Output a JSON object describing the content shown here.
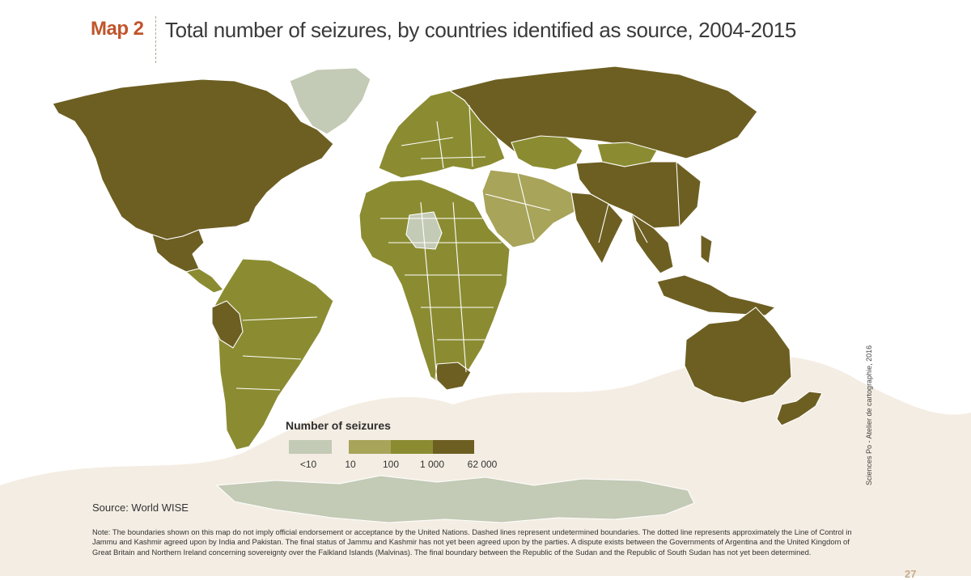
{
  "header": {
    "map_label": "Map 2",
    "title": "Total number of seizures, by countries identified as source, 2004-2015"
  },
  "colors": {
    "class_lt10": "#c3cab5",
    "class_10_100": "#a8a45a",
    "class_100_1000": "#8b8c32",
    "class_1000_62000": "#6d5f22",
    "border": "#ffffff",
    "background_texture": "#f4ede3"
  },
  "legend": {
    "title": "Number of seizures",
    "ticks": [
      "<10",
      "10",
      "100",
      "1 000",
      "62 000"
    ]
  },
  "source": "Source: World WISE",
  "credit": "Sciences Po - Atelier de cartographie, 2016",
  "note": "Note: The boundaries shown on this map do not imply official endorsement or acceptance by the United Nations. Dashed lines represent undetermined boundaries. The dotted line represents approximately the Line of Control in Jammu and Kashmir agreed upon by India and Pakistan. The final status of Jammu and Kashmir has not yet been agreed upon by the parties. A dispute exists between the Governments of Argentina and the United Kingdom of Great Britain and Northern Ireland concerning sovereignty over the Falkland Islands (Malvinas). The final boundary between the Republic of the Sudan and the Republic of South Sudan has not yet been determined.",
  "page_number": "27",
  "regions": [
    {
      "name": "North America",
      "class": "class_1000_62000"
    },
    {
      "name": "Mexico",
      "class": "class_1000_62000"
    },
    {
      "name": "Central America",
      "class": "class_100_1000"
    },
    {
      "name": "South America",
      "class": "class_100_1000"
    },
    {
      "name": "Peru",
      "class": "class_1000_62000"
    },
    {
      "name": "Greenland",
      "class": "class_lt10"
    },
    {
      "name": "Europe",
      "class": "class_100_1000"
    },
    {
      "name": "Russia",
      "class": "class_1000_62000"
    },
    {
      "name": "Kazakhstan",
      "class": "class_100_1000"
    },
    {
      "name": "Mongolia",
      "class": "class_100_1000"
    },
    {
      "name": "China",
      "class": "class_1000_62000"
    },
    {
      "name": "India",
      "class": "class_1000_62000"
    },
    {
      "name": "Middle East",
      "class": "class_10_100"
    },
    {
      "name": "Africa",
      "class": "class_100_1000"
    },
    {
      "name": "Niger",
      "class": "class_lt10"
    },
    {
      "name": "South Africa",
      "class": "class_1000_62000"
    },
    {
      "name": "Southeast Asia",
      "class": "class_1000_62000"
    },
    {
      "name": "Australia",
      "class": "class_1000_62000"
    },
    {
      "name": "Antarctica",
      "class": "class_lt10"
    }
  ]
}
